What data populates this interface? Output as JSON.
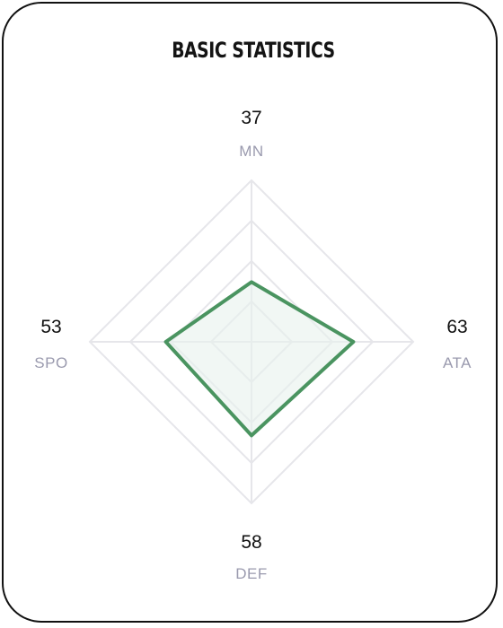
{
  "card": {
    "title": "BASIC STATISTICS"
  },
  "chart_data": {
    "type": "radar",
    "title": "BASIC STATISTICS",
    "max": 100,
    "rings": 4,
    "axes": [
      {
        "key": "mn",
        "label": "MN",
        "value": 37,
        "position": "top"
      },
      {
        "key": "ata",
        "label": "ATA",
        "value": 63,
        "position": "right"
      },
      {
        "key": "def",
        "label": "DEF",
        "value": 58,
        "position": "bottom"
      },
      {
        "key": "spo",
        "label": "SPO",
        "value": 53,
        "position": "left"
      }
    ],
    "colors": {
      "series_stroke": "#4a9460",
      "grid": "#e6e6ea",
      "area_fill": "#e8f1ec"
    }
  }
}
